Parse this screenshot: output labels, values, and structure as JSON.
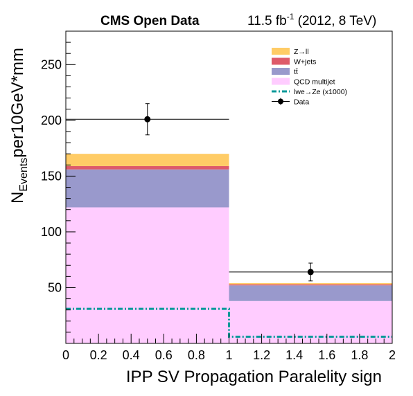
{
  "header": {
    "left": "CMS Open Data",
    "lumi_prefix": "11.5 fb",
    "lumi_exp": "-1",
    "lumi_suffix": " (2012, 8 TeV)"
  },
  "chart_data": {
    "type": "bar",
    "stacked": true,
    "xlabel": "IPP SV Propagation Paralelity sign",
    "ylabel_main": "N",
    "ylabel_sub": "Events",
    "ylabel_rest": "per10GeV*mm",
    "xlim": [
      0,
      2
    ],
    "ylim": [
      0,
      280
    ],
    "x_ticks": [
      "0",
      "0.2",
      "0.4",
      "0.6",
      "0.8",
      "1",
      "1.2",
      "1.4",
      "1.6",
      "1.8",
      "2"
    ],
    "y_ticks": [
      "50",
      "100",
      "150",
      "200",
      "250"
    ],
    "bins": [
      [
        0,
        1
      ],
      [
        1,
        2
      ]
    ],
    "series": [
      {
        "name": "QCD multijet",
        "color": "#ffccff",
        "values": [
          122,
          38
        ]
      },
      {
        "name": "tt̄",
        "color": "#9999cc",
        "values": [
          34,
          14
        ]
      },
      {
        "name": "W+jets",
        "color": "#de5a6a",
        "values": [
          3,
          1
        ]
      },
      {
        "name": "Z→ll",
        "color": "#ffcc66",
        "values": [
          11,
          1
        ]
      }
    ],
    "signal": {
      "name": "lwe→Ze (x1000)",
      "color": "#009999",
      "values": [
        31,
        6
      ]
    },
    "data": {
      "name": "Data",
      "x": [
        0.5,
        1.5
      ],
      "y": [
        201,
        64
      ],
      "yerr": [
        14,
        8
      ]
    },
    "legend_order": [
      "Z→ll",
      "W+jets",
      "tt̄",
      "QCD multijet",
      "lwe→Ze (x1000)",
      "Data"
    ],
    "legend_position": "top-right"
  }
}
